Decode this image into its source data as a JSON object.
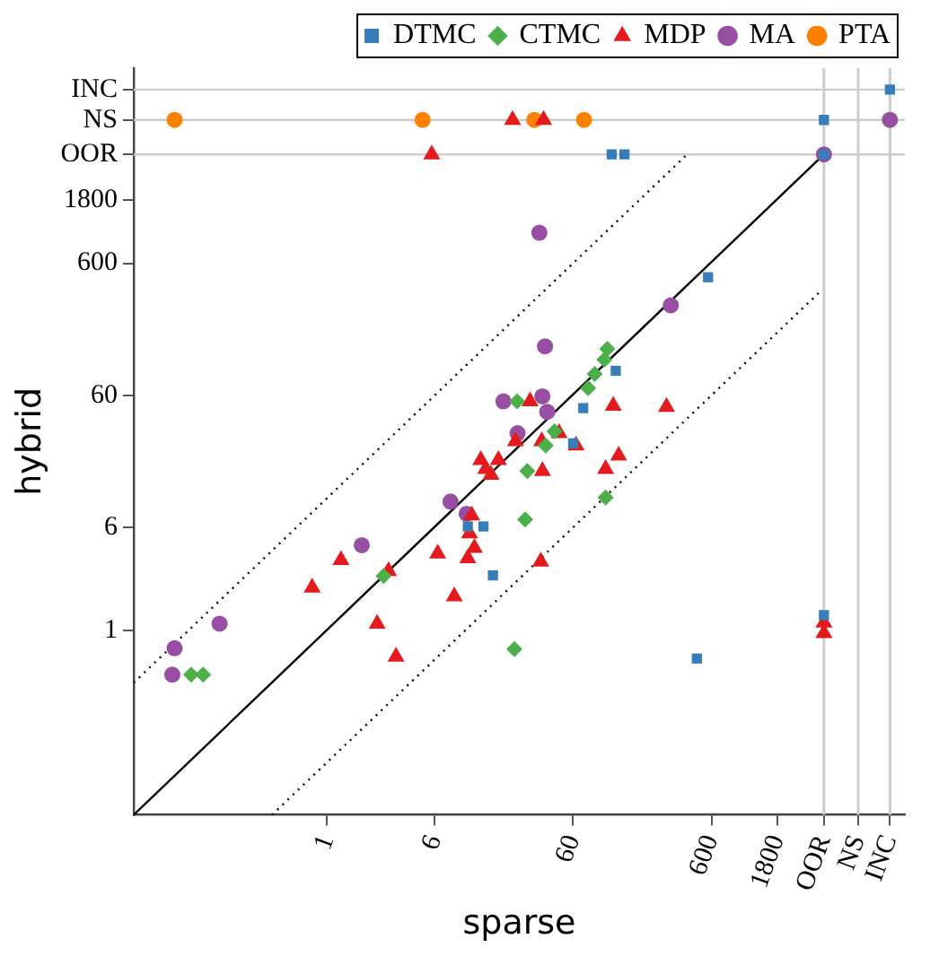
{
  "chart_data": {
    "type": "scatter",
    "xlabel": "sparse",
    "ylabel": "hybrid",
    "log": "xy",
    "legend": "top right",
    "grid": false,
    "xlim": [
      0.04,
      15000
    ],
    "ylim": [
      0.04,
      18000
    ],
    "xticks": [
      1,
      6,
      60,
      600,
      1800,
      {
        "value": 3900,
        "label": "OOR"
      },
      {
        "value": 6900,
        "label": "NS"
      },
      {
        "value": 11700,
        "label": "INC"
      }
    ],
    "yticks": [
      1,
      6,
      60,
      600,
      1800,
      {
        "value": 4000,
        "label": "OOR"
      },
      {
        "value": 7300,
        "label": "NS"
      },
      {
        "value": 12400,
        "label": "INC"
      }
    ],
    "ref_lines": [
      {
        "axis": "x",
        "value": 3900,
        "color": "#cccccc"
      },
      {
        "axis": "x",
        "value": 6900,
        "color": "#cccccc"
      },
      {
        "axis": "x",
        "value": 11700,
        "color": "#cccccc"
      },
      {
        "axis": "y",
        "value": 4000,
        "color": "#cccccc"
      },
      {
        "axis": "y",
        "value": 7300,
        "color": "#cccccc"
      },
      {
        "axis": "y",
        "value": 12400,
        "color": "#cccccc"
      }
    ],
    "series": [
      {
        "type": "line",
        "color": "#000000",
        "line_style": "solid",
        "marker": "none",
        "x": [
          0.04,
          3900
        ],
        "values": [
          0.04,
          4000
        ]
      },
      {
        "type": "line",
        "color": "#000000",
        "line_style": "dotted",
        "marker": "none",
        "x": [
          0.04,
          400
        ],
        "values": [
          0.4,
          4000
        ]
      },
      {
        "type": "line",
        "color": "#000000",
        "line_style": "dotted",
        "marker": "none",
        "x": [
          0.4,
          3600
        ],
        "values": [
          0.04,
          360
        ]
      },
      {
        "name": "DTMC",
        "color": "#377eb8",
        "marker": "square",
        "x": [
          3900,
          11700,
          114,
          141,
          3900,
          567,
          122,
          71,
          60,
          10.4,
          13.5,
          15.8,
          471,
          3900
        ],
        "values": [
          7300,
          12400,
          4000,
          4000,
          4000,
          470,
          92,
          48,
          26,
          6.1,
          6.1,
          2.6,
          0.61,
          1.3
        ]
      },
      {
        "name": "CTMC",
        "color": "#4daf4a",
        "marker": "diamond",
        "x": [
          106,
          101,
          86,
          77,
          23.6,
          44,
          38,
          28,
          103,
          27,
          2.56,
          22.6,
          0.104,
          0.127
        ],
        "values": [
          135,
          112,
          87,
          68,
          54,
          32,
          25,
          16,
          10.1,
          6.9,
          2.57,
          0.72,
          0.46,
          0.46
        ]
      },
      {
        "name": "MDP",
        "color": "#e41a1c",
        "marker": "triangle",
        "x": [
          21.9,
          36.7,
          5.7,
          29.3,
          117,
          284,
          47.5,
          23,
          35.6,
          63,
          12.9,
          17.3,
          128,
          14,
          15.3,
          36,
          103,
          11.1,
          10.7,
          1.26,
          6.3,
          10.4,
          11.6,
          2.78,
          0.78,
          8.3,
          2.3,
          3.15,
          35,
          3900,
          3900
        ],
        "values": [
          7300,
          7300,
          4000,
          54,
          50,
          49,
          31,
          27,
          27,
          25,
          19.4,
          19.4,
          21,
          16.6,
          15,
          16,
          16.6,
          7.4,
          5.4,
          3.4,
          3.8,
          3.5,
          4.2,
          2.8,
          2.1,
          1.8,
          1.12,
          0.63,
          3.3,
          1.14,
          0.95
        ]
      },
      {
        "name": "MA",
        "color": "#984ea3",
        "marker": "circle",
        "x": [
          3900,
          11700,
          34.2,
          305,
          37.6,
          18.8,
          36,
          39,
          23.8,
          7.8,
          10.2,
          1.78,
          0.167,
          0.079,
          0.076
        ],
        "values": [
          4000,
          7300,
          1020,
          288,
          141,
          54,
          59,
          45,
          31,
          9.4,
          7.6,
          4.4,
          1.12,
          0.73,
          0.46
        ]
      },
      {
        "name": "PTA",
        "color": "#ff7f00",
        "marker": "circle",
        "x": [
          0.079,
          4.9,
          31.5,
          72
        ],
        "values": [
          7300,
          7300,
          7300,
          7300
        ]
      }
    ]
  }
}
